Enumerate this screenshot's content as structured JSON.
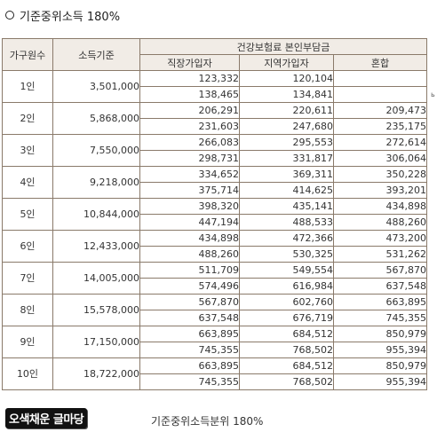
{
  "heading": {
    "text": "기준중위소득 180%"
  },
  "table": {
    "headers": {
      "household": "가구원수",
      "income": "소득기준",
      "premium_group": "건강보험료 본인부담금",
      "employee": "직장가입자",
      "regional": "지역가입자",
      "mixed": "혼합"
    },
    "rows": [
      {
        "household": "1인",
        "income": "3,501,000",
        "employee": [
          "123,332",
          "138,465"
        ],
        "regional": [
          "120,104",
          "134,841"
        ],
        "mixed": [
          "",
          ""
        ]
      },
      {
        "household": "2인",
        "income": "5,868,000",
        "employee": [
          "206,291",
          "231,603"
        ],
        "regional": [
          "220,611",
          "247,680"
        ],
        "mixed": [
          "209,473",
          "235,175"
        ]
      },
      {
        "household": "3인",
        "income": "7,550,000",
        "employee": [
          "266,083",
          "298,731"
        ],
        "regional": [
          "295,553",
          "331,817"
        ],
        "mixed": [
          "272,614",
          "306,064"
        ]
      },
      {
        "household": "4인",
        "income": "9,218,000",
        "employee": [
          "334,652",
          "375,714"
        ],
        "regional": [
          "369,311",
          "414,625"
        ],
        "mixed": [
          "350,228",
          "393,201"
        ]
      },
      {
        "household": "5인",
        "income": "10,844,000",
        "employee": [
          "398,320",
          "447,194"
        ],
        "regional": [
          "435,141",
          "488,533"
        ],
        "mixed": [
          "434,898",
          "488,260"
        ]
      },
      {
        "household": "6인",
        "income": "12,433,000",
        "employee": [
          "434,898",
          "488,260"
        ],
        "regional": [
          "472,366",
          "530,325"
        ],
        "mixed": [
          "473,200",
          "531,262"
        ]
      },
      {
        "household": "7인",
        "income": "14,005,000",
        "employee": [
          "511,709",
          "574,496"
        ],
        "regional": [
          "549,554",
          "616,984"
        ],
        "mixed": [
          "567,870",
          "637,548"
        ]
      },
      {
        "household": "8인",
        "income": "15,578,000",
        "employee": [
          "567,870",
          "637,548"
        ],
        "regional": [
          "602,760",
          "676,719"
        ],
        "mixed": [
          "663,895",
          "745,355"
        ]
      },
      {
        "household": "9인",
        "income": "17,150,000",
        "employee": [
          "663,895",
          "745,355"
        ],
        "regional": [
          "684,512",
          "768,502"
        ],
        "mixed": [
          "850,979",
          "955,394"
        ]
      },
      {
        "household": "10인",
        "income": "18,722,000",
        "employee": [
          "663,895",
          "745,355"
        ],
        "regional": [
          "684,512",
          "768,502"
        ],
        "mixed": [
          "850,979",
          "955,394"
        ]
      }
    ]
  },
  "edge_mark": "ь",
  "logo": {
    "text": "오색채운 글마당"
  },
  "caption": {
    "text": "기준중위소득분위 180%"
  }
}
